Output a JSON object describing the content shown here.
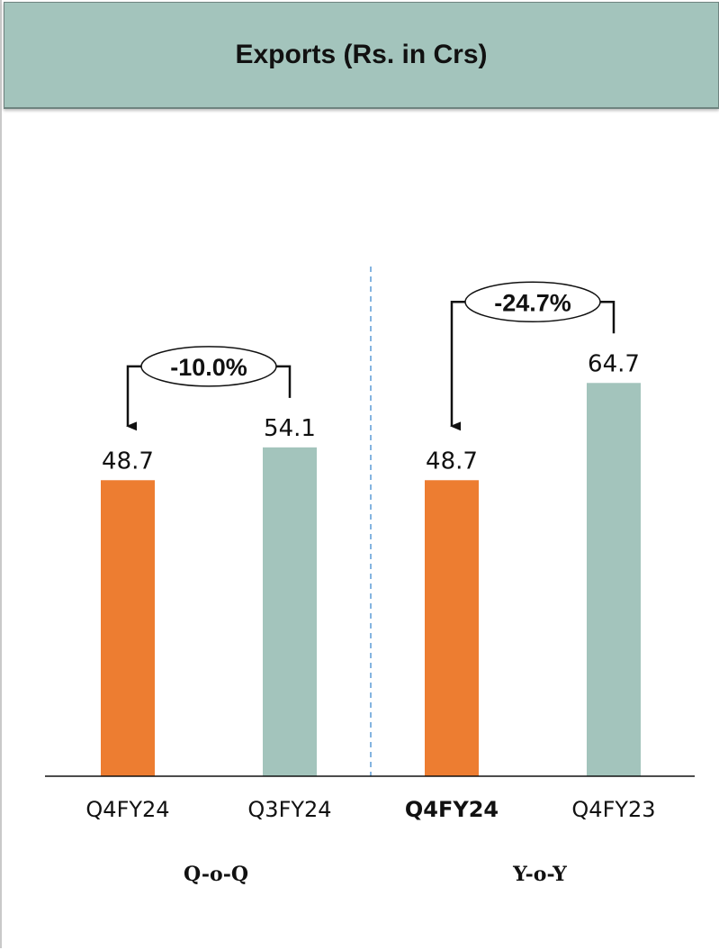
{
  "header": {
    "title": "Exports (Rs. in Crs)"
  },
  "colors": {
    "current": "#ed7d31",
    "comparison": "#a3c4bc",
    "divider": "#5b9bd5",
    "header_bg": "#a3c4bc"
  },
  "chart_data": {
    "type": "bar",
    "title": "Exports (Rs. in Crs)",
    "ylim": [
      0,
      70
    ],
    "grid": false,
    "legend": "none",
    "groups": [
      {
        "name": "Q-o-Q",
        "change": "-10.0%",
        "bars": [
          {
            "category": "Q4FY24",
            "value": 48.7,
            "label": "48.7",
            "role": "current",
            "bold": false
          },
          {
            "category": "Q3FY24",
            "value": 54.1,
            "label": "54.1",
            "role": "comparison",
            "bold": false
          }
        ]
      },
      {
        "name": "Y-o-Y",
        "change": "-24.7%",
        "bars": [
          {
            "category": "Q4FY24",
            "value": 48.7,
            "label": "48.7",
            "role": "current",
            "bold": true
          },
          {
            "category": "Q4FY23",
            "value": 64.7,
            "label": "64.7",
            "role": "comparison",
            "bold": false
          }
        ]
      }
    ]
  }
}
